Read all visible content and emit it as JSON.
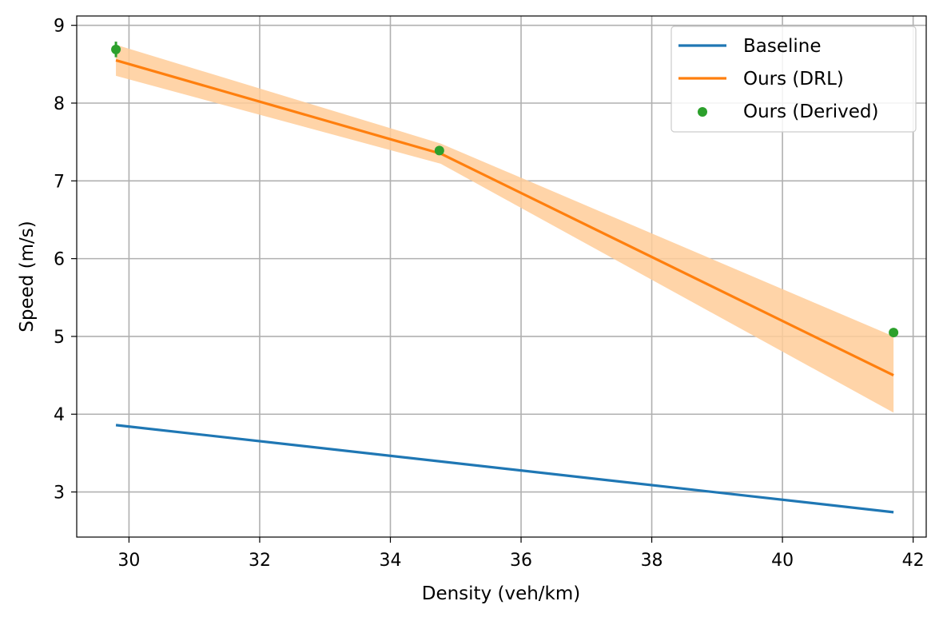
{
  "chart_data": {
    "type": "line",
    "title": "",
    "xlabel": "Density (veh/km)",
    "ylabel": "Speed (m/s)",
    "xlim": [
      29.2,
      42.2
    ],
    "ylim": [
      2.42,
      9.12
    ],
    "xticks": [
      30,
      32,
      34,
      36,
      38,
      40,
      42
    ],
    "yticks": [
      3,
      4,
      5,
      6,
      7,
      8,
      9
    ],
    "grid": true,
    "legend_position": "top-right",
    "series": [
      {
        "name": "Baseline",
        "kind": "line",
        "color": "#1f77b4",
        "x": [
          29.8,
          41.7
        ],
        "y": [
          3.86,
          2.74
        ]
      },
      {
        "name": "Ours (DRL)",
        "kind": "line",
        "color": "#ff7f0e",
        "band_color": "#ffcc99",
        "x": [
          29.8,
          34.77,
          41.7
        ],
        "y": [
          8.55,
          7.35,
          4.5
        ],
        "y_lower": [
          8.35,
          7.22,
          4.02
        ],
        "y_upper": [
          8.75,
          7.48,
          5.0
        ]
      },
      {
        "name": "Ours (Derived)",
        "kind": "scatter",
        "color": "#2ca02c",
        "x": [
          29.8,
          34.75,
          41.7
        ],
        "y": [
          8.69,
          7.39,
          5.05
        ],
        "y_err": [
          0.1,
          0,
          0
        ]
      }
    ]
  }
}
